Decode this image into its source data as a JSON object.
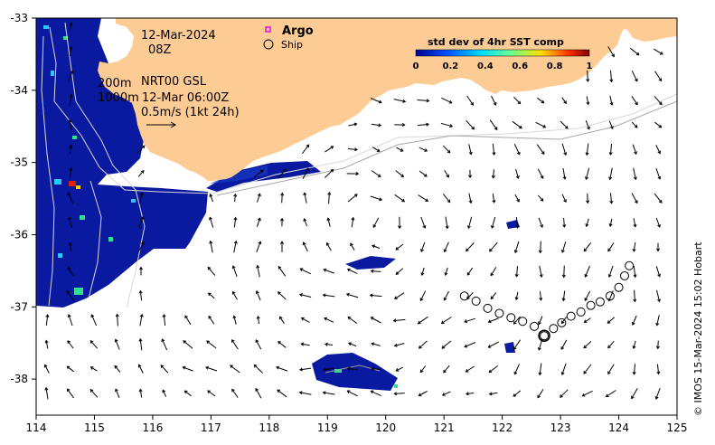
{
  "map": {
    "date_line1": "12-Mar-2024",
    "date_line2": "08Z",
    "contour_label_200": "200m",
    "contour_label_1000": "1000m",
    "product": "NRT00 GSL",
    "product_time": "12-Mar 06:00Z",
    "scale_label": "0.5m/s (1kt 24h)",
    "legend_argo": "Argo",
    "legend_ship": "Ship",
    "colorbar_title": "std dev of 4hr SST comp",
    "colorbar_ticks": [
      "0",
      "0.2",
      "0.4",
      "0.6",
      "0.8",
      "1"
    ],
    "credit": "© IMOS 15-Mar-2024 15:02 Hobart",
    "lon_ticks": [
      "114",
      "115",
      "116",
      "117",
      "118",
      "119",
      "120",
      "121",
      "122",
      "123",
      "124",
      "125"
    ],
    "lat_ticks": [
      "-33",
      "-34",
      "-35",
      "-36",
      "-37",
      "-38"
    ],
    "colors": {
      "land": "#FDCB94",
      "low_std": "#0A1AA0",
      "colorbar": [
        "#00008F",
        "#0050FF",
        "#00DFFF",
        "#70FF8F",
        "#FFDF00",
        "#FF3000",
        "#800000"
      ]
    }
  },
  "chart_data": {
    "type": "map",
    "xlim": [
      114,
      125
    ],
    "ylim": [
      -38.5,
      -33
    ],
    "ship_track": [
      [
        121.35,
        -36.85
      ],
      [
        121.55,
        -36.92
      ],
      [
        121.75,
        -37.02
      ],
      [
        121.95,
        -37.09
      ],
      [
        122.15,
        -37.15
      ],
      [
        122.35,
        -37.2
      ],
      [
        122.55,
        -37.27
      ],
      [
        122.72,
        -37.4
      ],
      [
        122.88,
        -37.3
      ],
      [
        123.02,
        -37.22
      ],
      [
        123.18,
        -37.13
      ],
      [
        123.35,
        -37.07
      ],
      [
        123.52,
        -36.98
      ],
      [
        123.68,
        -36.93
      ],
      [
        123.85,
        -36.85
      ],
      [
        124.0,
        -36.73
      ],
      [
        124.1,
        -36.57
      ],
      [
        124.18,
        -36.43
      ]
    ],
    "ship_current": [
      122.72,
      -37.4
    ]
  }
}
